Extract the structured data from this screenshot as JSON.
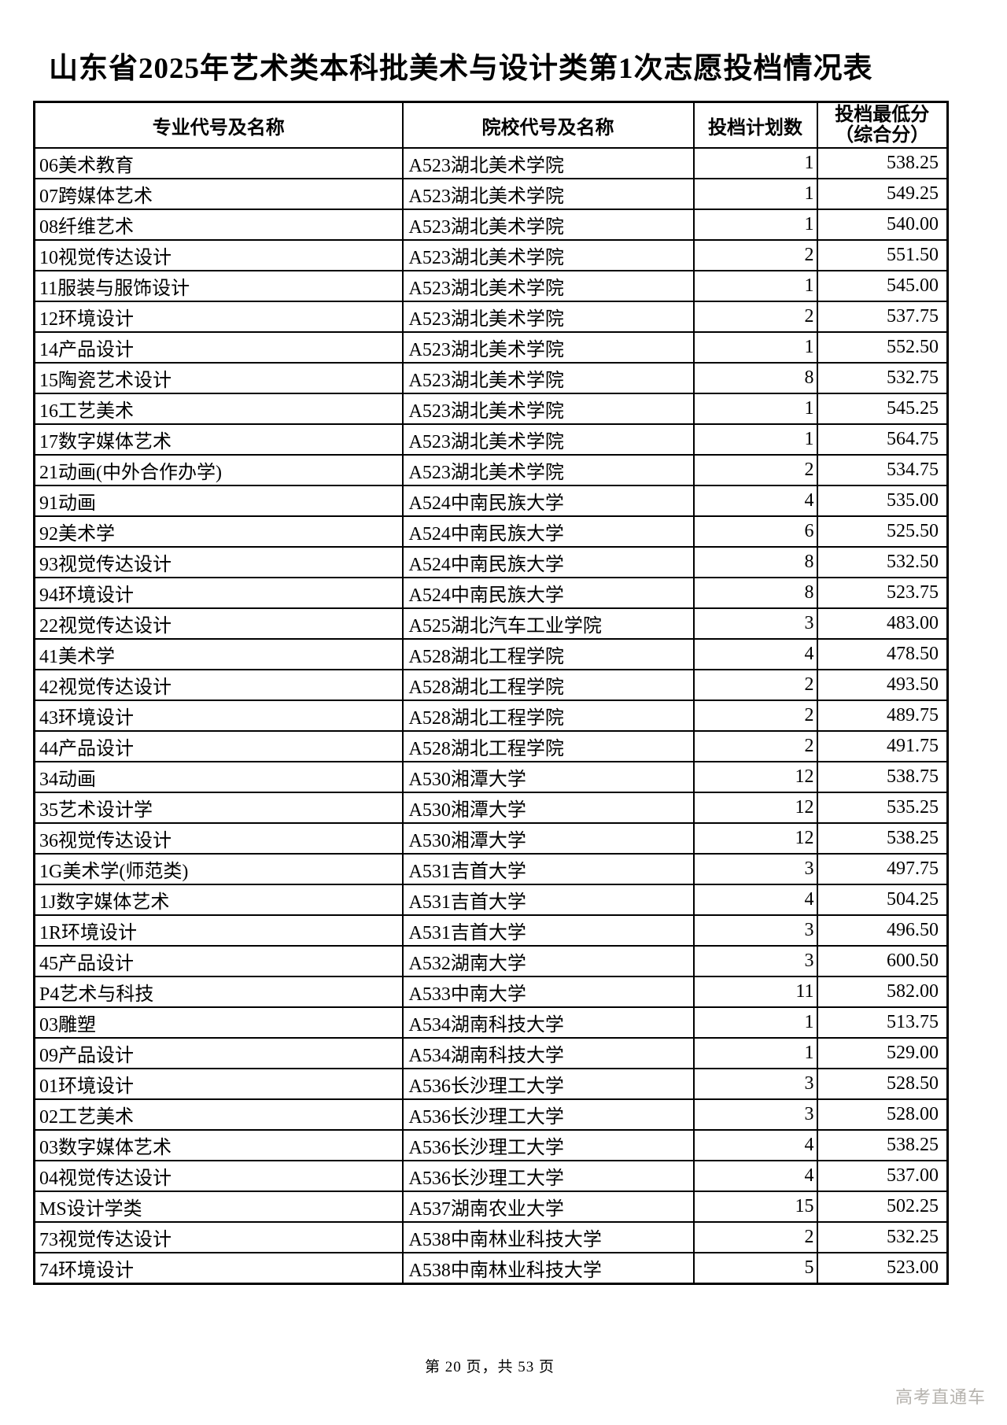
{
  "page": {
    "title": "山东省2025年艺术类本科批美术与设计类第1次志愿投档情况表",
    "footer": "第 20 页，共 53 页",
    "watermark": "高考直通车",
    "colors": {
      "background": "#ffffff",
      "text": "#000000",
      "border": "#000000",
      "watermark": "#b6b3ae"
    }
  },
  "table": {
    "headers": {
      "major": "专业代号及名称",
      "college": "院校代号及名称",
      "plan": "投档计划数",
      "score_line1": "投档最低分",
      "score_line2": "（综合分）"
    },
    "rows": [
      {
        "major": "06美术教育",
        "college": "A523湖北美术学院",
        "plan": "1",
        "score": "538.25"
      },
      {
        "major": "07跨媒体艺术",
        "college": "A523湖北美术学院",
        "plan": "1",
        "score": "549.25"
      },
      {
        "major": "08纤维艺术",
        "college": "A523湖北美术学院",
        "plan": "1",
        "score": "540.00"
      },
      {
        "major": "10视觉传达设计",
        "college": "A523湖北美术学院",
        "plan": "2",
        "score": "551.50"
      },
      {
        "major": "11服装与服饰设计",
        "college": "A523湖北美术学院",
        "plan": "1",
        "score": "545.00"
      },
      {
        "major": "12环境设计",
        "college": "A523湖北美术学院",
        "plan": "2",
        "score": "537.75"
      },
      {
        "major": "14产品设计",
        "college": "A523湖北美术学院",
        "plan": "1",
        "score": "552.50"
      },
      {
        "major": "15陶瓷艺术设计",
        "college": "A523湖北美术学院",
        "plan": "8",
        "score": "532.75"
      },
      {
        "major": "16工艺美术",
        "college": "A523湖北美术学院",
        "plan": "1",
        "score": "545.25"
      },
      {
        "major": "17数字媒体艺术",
        "college": "A523湖北美术学院",
        "plan": "1",
        "score": "564.75"
      },
      {
        "major": "21动画(中外合作办学)",
        "college": "A523湖北美术学院",
        "plan": "2",
        "score": "534.75"
      },
      {
        "major": "91动画",
        "college": "A524中南民族大学",
        "plan": "4",
        "score": "535.00"
      },
      {
        "major": "92美术学",
        "college": "A524中南民族大学",
        "plan": "6",
        "score": "525.50"
      },
      {
        "major": "93视觉传达设计",
        "college": "A524中南民族大学",
        "plan": "8",
        "score": "532.50"
      },
      {
        "major": "94环境设计",
        "college": "A524中南民族大学",
        "plan": "8",
        "score": "523.75"
      },
      {
        "major": "22视觉传达设计",
        "college": "A525湖北汽车工业学院",
        "plan": "3",
        "score": "483.00"
      },
      {
        "major": "41美术学",
        "college": "A528湖北工程学院",
        "plan": "4",
        "score": "478.50"
      },
      {
        "major": "42视觉传达设计",
        "college": "A528湖北工程学院",
        "plan": "2",
        "score": "493.50"
      },
      {
        "major": "43环境设计",
        "college": "A528湖北工程学院",
        "plan": "2",
        "score": "489.75"
      },
      {
        "major": "44产品设计",
        "college": "A528湖北工程学院",
        "plan": "2",
        "score": "491.75"
      },
      {
        "major": "34动画",
        "college": "A530湘潭大学",
        "plan": "12",
        "score": "538.75"
      },
      {
        "major": "35艺术设计学",
        "college": "A530湘潭大学",
        "plan": "12",
        "score": "535.25"
      },
      {
        "major": "36视觉传达设计",
        "college": "A530湘潭大学",
        "plan": "12",
        "score": "538.25"
      },
      {
        "major": "1G美术学(师范类)",
        "college": "A531吉首大学",
        "plan": "3",
        "score": "497.75"
      },
      {
        "major": "1J数字媒体艺术",
        "college": "A531吉首大学",
        "plan": "4",
        "score": "504.25"
      },
      {
        "major": "1R环境设计",
        "college": "A531吉首大学",
        "plan": "3",
        "score": "496.50"
      },
      {
        "major": "45产品设计",
        "college": "A532湖南大学",
        "plan": "3",
        "score": "600.50"
      },
      {
        "major": "P4艺术与科技",
        "college": "A533中南大学",
        "plan": "11",
        "score": "582.00"
      },
      {
        "major": "03雕塑",
        "college": "A534湖南科技大学",
        "plan": "1",
        "score": "513.75"
      },
      {
        "major": "09产品设计",
        "college": "A534湖南科技大学",
        "plan": "1",
        "score": "529.00"
      },
      {
        "major": "01环境设计",
        "college": "A536长沙理工大学",
        "plan": "3",
        "score": "528.50"
      },
      {
        "major": "02工艺美术",
        "college": "A536长沙理工大学",
        "plan": "3",
        "score": "528.00"
      },
      {
        "major": "03数字媒体艺术",
        "college": "A536长沙理工大学",
        "plan": "4",
        "score": "538.25"
      },
      {
        "major": "04视觉传达设计",
        "college": "A536长沙理工大学",
        "plan": "4",
        "score": "537.00"
      },
      {
        "major": "MS设计学类",
        "college": "A537湖南农业大学",
        "plan": "15",
        "score": "502.25"
      },
      {
        "major": "73视觉传达设计",
        "college": "A538中南林业科技大学",
        "plan": "2",
        "score": "532.25"
      },
      {
        "major": "74环境设计",
        "college": "A538中南林业科技大学",
        "plan": "5",
        "score": "523.00"
      }
    ]
  }
}
